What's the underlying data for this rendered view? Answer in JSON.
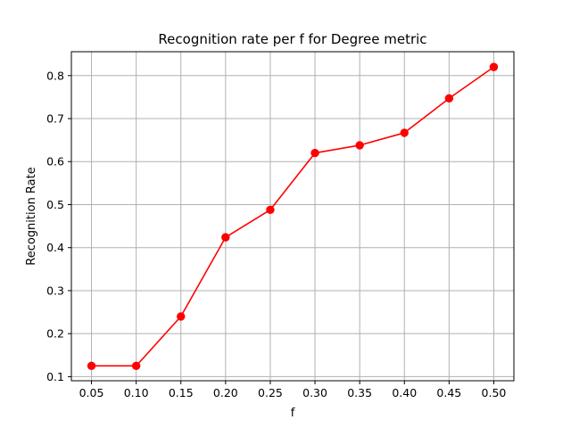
{
  "chart_data": {
    "type": "line",
    "title": "Recognition rate per f for Degree metric",
    "xlabel": "f",
    "ylabel": "Recognition Rate",
    "x": [
      0.05,
      0.1,
      0.15,
      0.2,
      0.25,
      0.3,
      0.35,
      0.4,
      0.45,
      0.5
    ],
    "x_tick_labels": [
      "0.05",
      "0.10",
      "0.15",
      "0.20",
      "0.25",
      "0.30",
      "0.35",
      "0.40",
      "0.45",
      "0.50"
    ],
    "y_ticks": [
      0.1,
      0.2,
      0.3,
      0.4,
      0.5,
      0.6,
      0.7,
      0.8
    ],
    "y_tick_labels": [
      "0.1",
      "0.2",
      "0.3",
      "0.4",
      "0.5",
      "0.6",
      "0.7",
      "0.8"
    ],
    "xlim": [
      0.0275,
      0.5225
    ],
    "ylim": [
      0.0905,
      0.8555
    ],
    "grid": true,
    "series": [
      {
        "color": "#ff0000",
        "marker": "circle",
        "values": [
          0.125,
          0.125,
          0.24,
          0.424,
          0.488,
          0.62,
          0.638,
          0.667,
          0.747,
          0.82
        ]
      }
    ]
  }
}
